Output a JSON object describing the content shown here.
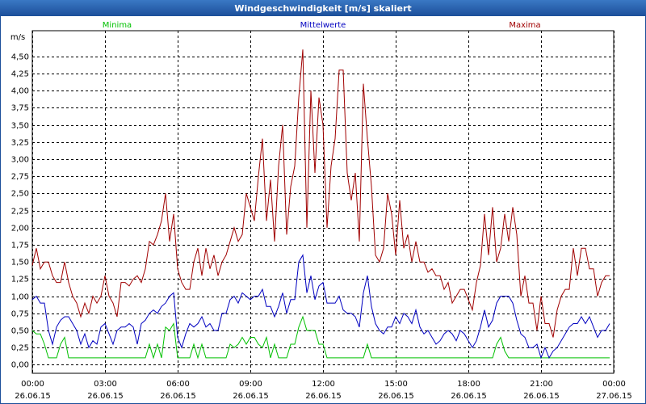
{
  "chart_data": {
    "type": "line",
    "title": "Windgeschwindigkeit [m/s] skaliert",
    "y_label": "m/s",
    "x": [
      0,
      10,
      20,
      30,
      40,
      50,
      60,
      70,
      80,
      90,
      100,
      110,
      120,
      130,
      140,
      150,
      160,
      170,
      180,
      190,
      200,
      210,
      220,
      230,
      240,
      250,
      260,
      270,
      280,
      290,
      300,
      310,
      320,
      330,
      340,
      350,
      360,
      370,
      380,
      390,
      400,
      410,
      420,
      430,
      440,
      450,
      460,
      470,
      480,
      490,
      500,
      510,
      520,
      530,
      540,
      550,
      560,
      570,
      580,
      590,
      600,
      610,
      620,
      630,
      640,
      650,
      660,
      670,
      680,
      690,
      700,
      710,
      720,
      730,
      740,
      750,
      760,
      770,
      780,
      790,
      800,
      810,
      820,
      830,
      840,
      850,
      860,
      870,
      880,
      890,
      900,
      910,
      920,
      930,
      940,
      950,
      960,
      970,
      980,
      990,
      1000,
      1010,
      1020,
      1030,
      1040,
      1050,
      1060,
      1070,
      1080,
      1090,
      1100,
      1110,
      1120,
      1130,
      1140,
      1150,
      1160,
      1170,
      1180,
      1190,
      1200,
      1210,
      1220,
      1230,
      1240,
      1250,
      1260,
      1270,
      1280,
      1290,
      1300,
      1310,
      1320,
      1330,
      1340,
      1350,
      1360,
      1370,
      1380,
      1390,
      1400,
      1410,
      1420,
      1430
    ],
    "series": [
      {
        "name": "Minima",
        "color": "#00c000",
        "values": [
          0.5,
          0.45,
          0.45,
          0.3,
          0.1,
          0.1,
          0.1,
          0.3,
          0.4,
          0.1,
          0.1,
          0.1,
          0.1,
          0.1,
          0.1,
          0.1,
          0.1,
          0.1,
          0.1,
          0.1,
          0.1,
          0.1,
          0.1,
          0.1,
          0.1,
          0.1,
          0.1,
          0.1,
          0.1,
          0.3,
          0.1,
          0.3,
          0.1,
          0.55,
          0.5,
          0.6,
          0.1,
          0.1,
          0.1,
          0.1,
          0.3,
          0.1,
          0.3,
          0.1,
          0.1,
          0.1,
          0.1,
          0.1,
          0.1,
          0.3,
          0.25,
          0.3,
          0.4,
          0.3,
          0.4,
          0.4,
          0.3,
          0.25,
          0.4,
          0.1,
          0.3,
          0.1,
          0.1,
          0.1,
          0.3,
          0.3,
          0.55,
          0.7,
          0.5,
          0.5,
          0.5,
          0.3,
          0.3,
          0.1,
          0.1,
          0.1,
          0.1,
          0.1,
          0.1,
          0.1,
          0.1,
          0.1,
          0.1,
          0.3,
          0.1,
          0.1,
          0.1,
          0.1,
          0.1,
          0.1,
          0.1,
          0.1,
          0.1,
          0.1,
          0.1,
          0.1,
          0.1,
          0.1,
          0.1,
          0.1,
          0.1,
          0.1,
          0.1,
          0.1,
          0.1,
          0.1,
          0.1,
          0.1,
          0.1,
          0.1,
          0.1,
          0.1,
          0.1,
          0.1,
          0.1,
          0.3,
          0.4,
          0.2,
          0.1,
          0.1,
          0.1,
          0.1,
          0.1,
          0.1,
          0.1,
          0.1,
          0.1,
          0.1,
          0.1,
          0.1,
          0.1,
          0.1,
          0.1,
          0.1,
          0.1,
          0.1,
          0.1,
          0.1,
          0.1,
          0.1,
          0.1,
          0.1,
          0.1,
          0.1
        ]
      },
      {
        "name": "Mittelwerte",
        "color": "#0000c0",
        "values": [
          0.95,
          1.0,
          0.9,
          0.9,
          0.5,
          0.3,
          0.55,
          0.65,
          0.7,
          0.7,
          0.6,
          0.5,
          0.3,
          0.45,
          0.25,
          0.35,
          0.3,
          0.55,
          0.6,
          0.45,
          0.3,
          0.5,
          0.55,
          0.55,
          0.6,
          0.55,
          0.3,
          0.6,
          0.65,
          0.75,
          0.8,
          0.75,
          0.85,
          0.9,
          1.0,
          1.05,
          0.4,
          0.25,
          0.45,
          0.6,
          0.55,
          0.6,
          0.7,
          0.55,
          0.6,
          0.5,
          0.5,
          0.75,
          0.75,
          0.95,
          1.0,
          0.9,
          1.05,
          1.0,
          0.95,
          1.0,
          1.0,
          1.1,
          0.85,
          0.85,
          0.7,
          0.85,
          1.05,
          0.75,
          0.95,
          0.95,
          1.5,
          1.6,
          1.05,
          1.3,
          0.95,
          1.15,
          1.2,
          0.9,
          0.9,
          0.9,
          1.0,
          0.8,
          0.75,
          0.75,
          0.7,
          0.55,
          1.05,
          1.3,
          0.85,
          0.6,
          0.5,
          0.45,
          0.55,
          0.55,
          0.7,
          0.6,
          0.75,
          0.7,
          0.6,
          0.8,
          0.55,
          0.45,
          0.5,
          0.4,
          0.3,
          0.35,
          0.45,
          0.5,
          0.45,
          0.35,
          0.5,
          0.45,
          0.35,
          0.25,
          0.35,
          0.55,
          0.8,
          0.55,
          0.65,
          0.9,
          1.0,
          1.0,
          1.0,
          0.9,
          0.65,
          0.45,
          0.4,
          0.25,
          0.25,
          0.3,
          0.1,
          0.25,
          0.1,
          0.2,
          0.25,
          0.35,
          0.45,
          0.55,
          0.6,
          0.6,
          0.7,
          0.6,
          0.7,
          0.55,
          0.4,
          0.5,
          0.5,
          0.6
        ]
      },
      {
        "name": "Maxima",
        "color": "#a00000",
        "values": [
          1.45,
          1.7,
          1.4,
          1.5,
          1.5,
          1.3,
          1.2,
          1.2,
          1.5,
          1.2,
          1.0,
          0.9,
          0.7,
          0.9,
          0.75,
          1.0,
          0.9,
          1.0,
          1.3,
          1.0,
          0.9,
          0.7,
          1.2,
          1.2,
          1.15,
          1.25,
          1.3,
          1.2,
          1.4,
          1.8,
          1.75,
          1.9,
          2.1,
          2.5,
          1.8,
          2.2,
          1.4,
          1.2,
          1.1,
          1.1,
          1.5,
          1.7,
          1.3,
          1.7,
          1.4,
          1.6,
          1.3,
          1.5,
          1.6,
          1.8,
          2.0,
          1.8,
          1.9,
          2.5,
          2.3,
          2.1,
          2.75,
          3.3,
          2.1,
          2.7,
          1.8,
          2.9,
          3.5,
          1.9,
          2.6,
          2.9,
          3.9,
          4.6,
          2.0,
          4.0,
          2.8,
          3.9,
          3.5,
          2.0,
          2.9,
          3.3,
          4.3,
          4.3,
          2.8,
          2.4,
          2.8,
          1.8,
          4.1,
          3.3,
          2.6,
          1.6,
          1.5,
          1.7,
          2.5,
          2.2,
          1.6,
          2.4,
          1.7,
          1.9,
          1.5,
          1.8,
          1.5,
          1.5,
          1.35,
          1.4,
          1.3,
          1.3,
          1.1,
          1.2,
          0.9,
          1.0,
          1.1,
          1.1,
          0.95,
          0.8,
          1.2,
          1.45,
          2.2,
          1.6,
          2.3,
          1.5,
          1.7,
          2.2,
          1.8,
          2.3,
          1.9,
          1.0,
          1.3,
          0.9,
          0.9,
          0.5,
          1.0,
          0.6,
          0.6,
          0.4,
          0.8,
          1.0,
          1.1,
          1.1,
          1.7,
          1.3,
          1.7,
          1.7,
          1.4,
          1.4,
          1.0,
          1.2,
          1.3,
          1.3
        ]
      }
    ],
    "xlim": [
      0,
      1440
    ],
    "xticks": [
      {
        "value": 0,
        "label": "00:00",
        "date": "26.06.15"
      },
      {
        "value": 180,
        "label": "03:00",
        "date": "26.06.15"
      },
      {
        "value": 360,
        "label": "06:00",
        "date": "26.06.15"
      },
      {
        "value": 540,
        "label": "09:00",
        "date": "26.06.15"
      },
      {
        "value": 720,
        "label": "12:00",
        "date": "26.06.15"
      },
      {
        "value": 900,
        "label": "15:00",
        "date": "26.06.15"
      },
      {
        "value": 1080,
        "label": "18:00",
        "date": "26.06.15"
      },
      {
        "value": 1260,
        "label": "21:00",
        "date": "26.06.15"
      },
      {
        "value": 1440,
        "label": "00:00",
        "date": "27.06.15"
      }
    ],
    "ylim": [
      -0.125,
      4.875
    ],
    "yticks": [
      {
        "value": 0,
        "label": "0,00"
      },
      {
        "value": 0.25,
        "label": "0,25"
      },
      {
        "value": 0.5,
        "label": "0,50"
      },
      {
        "value": 0.75,
        "label": "0,75"
      },
      {
        "value": 1,
        "label": "1,00"
      },
      {
        "value": 1.25,
        "label": "1,25"
      },
      {
        "value": 1.5,
        "label": "1,50"
      },
      {
        "value": 1.75,
        "label": "1,75"
      },
      {
        "value": 2,
        "label": "2,00"
      },
      {
        "value": 2.25,
        "label": "2,25"
      },
      {
        "value": 2.5,
        "label": "2,50"
      },
      {
        "value": 2.75,
        "label": "2,75"
      },
      {
        "value": 3,
        "label": "3,00"
      },
      {
        "value": 3.25,
        "label": "3,25"
      },
      {
        "value": 3.5,
        "label": "3,50"
      },
      {
        "value": 3.75,
        "label": "3,75"
      },
      {
        "value": 4,
        "label": "4,00"
      },
      {
        "value": 4.25,
        "label": "4,25"
      },
      {
        "value": 4.5,
        "label": "4,50"
      }
    ],
    "grid": true
  }
}
